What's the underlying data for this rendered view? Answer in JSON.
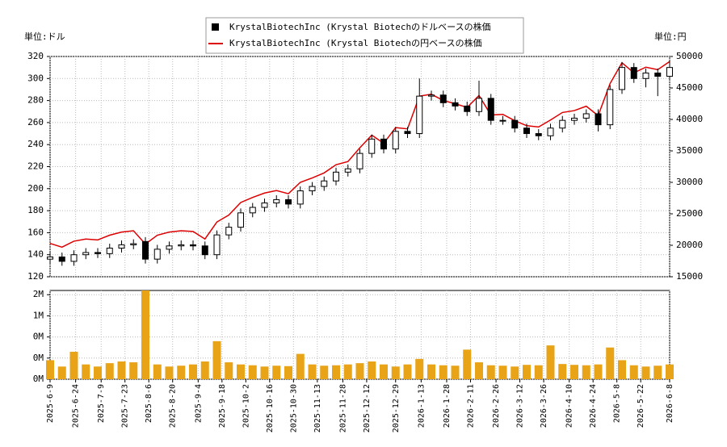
{
  "chart_data": {
    "type": "candlestick",
    "y_label": "単位:ドル",
    "y2_label": "単位:円",
    "xlim": [
      "2025-6-9",
      "2026-6-8"
    ],
    "xticks": [
      "2025-6-9",
      "2025-6-24",
      "2025-7-9",
      "2025-7-23",
      "2025-8-6",
      "2025-8-20",
      "2025-9-4",
      "2025-9-18",
      "2025-10-2",
      "2025-10-16",
      "2025-10-30",
      "2025-11-13",
      "2025-11-28",
      "2025-12-12",
      "2025-12-29",
      "2026-1-13",
      "2026-1-28",
      "2026-2-11",
      "2026-2-26",
      "2026-3-12",
      "2026-3-26",
      "2026-4-10",
      "2026-4-24",
      "2026-5-8",
      "2026-5-22",
      "2026-6-8"
    ],
    "ylim": [
      120,
      320
    ],
    "yticks": [
      120,
      140,
      160,
      180,
      200,
      220,
      240,
      260,
      280,
      300,
      320
    ],
    "y2lim": [
      15000,
      50000
    ],
    "y2ticks": [
      15000,
      20000,
      25000,
      30000,
      35000,
      40000,
      45000,
      50000
    ],
    "volume_ylim": [
      0,
      2100000
    ],
    "volume_yticks": [
      {
        "value": 0,
        "label": "0M"
      },
      {
        "value": 500000,
        "label": "0M"
      },
      {
        "value": 1000000,
        "label": "0M"
      },
      {
        "value": 1500000,
        "label": "1M"
      },
      {
        "value": 2000000,
        "label": "2M"
      }
    ],
    "grid": true,
    "x": [
      "2025-6-9",
      "2025-6-16",
      "2025-6-23",
      "2025-6-30",
      "2025-7-7",
      "2025-7-14",
      "2025-7-21",
      "2025-7-28",
      "2025-8-4",
      "2025-8-11",
      "2025-8-18",
      "2025-8-25",
      "2025-9-1",
      "2025-9-8",
      "2025-9-15",
      "2025-9-22",
      "2025-9-29",
      "2025-10-6",
      "2025-10-13",
      "2025-10-20",
      "2025-10-27",
      "2025-11-3",
      "2025-11-10",
      "2025-11-17",
      "2025-11-24",
      "2025-12-1",
      "2025-12-8",
      "2025-12-15",
      "2025-12-22",
      "2025-12-29",
      "2026-1-5",
      "2026-1-12",
      "2026-1-19",
      "2026-1-26",
      "2026-2-2",
      "2026-2-9",
      "2026-2-16",
      "2026-2-23",
      "2026-3-2",
      "2026-3-9",
      "2026-3-16",
      "2026-3-23",
      "2026-3-30",
      "2026-4-6",
      "2026-4-13",
      "2026-4-20",
      "2026-4-27",
      "2026-5-4",
      "2026-5-11",
      "2026-5-18",
      "2026-5-25",
      "2026-6-1",
      "2026-6-8"
    ],
    "series": [
      {
        "name": "KrystalBiotechInc (Krystal Biotechのドルベースの株価",
        "color": "#000000",
        "open": [
          136,
          138,
          134,
          140,
          142,
          141,
          146,
          149,
          152,
          136,
          145,
          148,
          149,
          148,
          140,
          158,
          165,
          178,
          183,
          187,
          190,
          186,
          198,
          202,
          207,
          215,
          218,
          232,
          245,
          236,
          252,
          250,
          284,
          285,
          278,
          275,
          270,
          282,
          262,
          262,
          255,
          250,
          248,
          255,
          262,
          264,
          268,
          258,
          290,
          310,
          300,
          305,
          302
        ],
        "high": [
          142,
          142,
          144,
          146,
          146,
          150,
          153,
          154,
          156,
          149,
          152,
          153,
          153,
          152,
          162,
          169,
          182,
          187,
          191,
          194,
          194,
          202,
          206,
          211,
          219,
          222,
          236,
          249,
          249,
          256,
          256,
          300,
          289,
          289,
          282,
          279,
          298,
          286,
          266,
          266,
          259,
          254,
          259,
          266,
          268,
          272,
          272,
          294,
          315,
          314,
          309,
          309,
          316
        ],
        "low": [
          132,
          130,
          130,
          136,
          137,
          137,
          142,
          145,
          132,
          132,
          141,
          144,
          144,
          136,
          136,
          154,
          161,
          174,
          179,
          183,
          182,
          182,
          194,
          198,
          203,
          211,
          214,
          228,
          232,
          232,
          246,
          246,
          280,
          274,
          271,
          266,
          266,
          258,
          258,
          251,
          246,
          244,
          244,
          251,
          258,
          260,
          252,
          254,
          286,
          296,
          292,
          284,
          298
        ],
        "close": [
          138,
          134,
          140,
          142,
          141,
          146,
          149,
          150,
          136,
          145,
          148,
          149,
          148,
          140,
          158,
          165,
          178,
          183,
          187,
          190,
          186,
          198,
          202,
          207,
          215,
          218,
          232,
          245,
          236,
          252,
          250,
          284,
          285,
          278,
          275,
          270,
          282,
          262,
          262,
          255,
          250,
          248,
          255,
          262,
          264,
          268,
          258,
          290,
          310,
          300,
          305,
          302,
          310
        ]
      },
      {
        "name": "KrystalBiotechInc (Krystal Biotechの円ベースの株価",
        "color": "#dd0000",
        "axis": "y2",
        "values": [
          20300,
          19700,
          20650,
          21000,
          20850,
          21600,
          22100,
          22300,
          20200,
          21600,
          22100,
          22300,
          22200,
          21000,
          23700,
          24800,
          26800,
          27600,
          28300,
          28700,
          28200,
          30000,
          30700,
          31500,
          32800,
          33300,
          35500,
          37500,
          36200,
          38700,
          38500,
          43700,
          44000,
          43000,
          42500,
          41900,
          43800,
          40700,
          40800,
          39800,
          39000,
          38800,
          39900,
          41100,
          41400,
          42100,
          40600,
          45700,
          49000,
          47400,
          48300,
          47900,
          49200
        ]
      }
    ],
    "volume": {
      "color": "#e8a317",
      "values": [
        450000,
        300000,
        650000,
        350000,
        300000,
        380000,
        420000,
        400000,
        2100000,
        350000,
        300000,
        320000,
        350000,
        420000,
        900000,
        400000,
        350000,
        330000,
        300000,
        320000,
        310000,
        600000,
        350000,
        320000,
        330000,
        350000,
        380000,
        420000,
        350000,
        300000,
        350000,
        480000,
        350000,
        330000,
        320000,
        700000,
        400000,
        330000,
        320000,
        300000,
        340000,
        330000,
        800000,
        360000,
        340000,
        330000,
        350000,
        750000,
        450000,
        330000,
        300000,
        320000,
        350000
      ]
    }
  }
}
